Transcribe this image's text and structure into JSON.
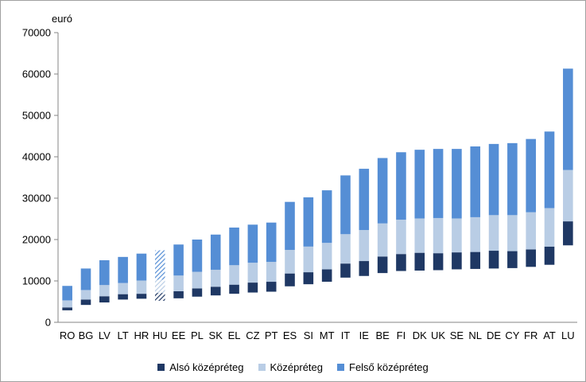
{
  "chart_data": {
    "type": "bar",
    "stacked": true,
    "unit_label": "euró",
    "ylim": [
      0,
      70000
    ],
    "yticks": [
      0,
      10000,
      20000,
      30000,
      40000,
      50000,
      60000,
      70000
    ],
    "categories": [
      "RO",
      "BG",
      "LV",
      "LT",
      "HR",
      "HU",
      "EE",
      "PL",
      "SK",
      "EL",
      "CZ",
      "PT",
      "ES",
      "SI",
      "MT",
      "IT",
      "IE",
      "BE",
      "FI",
      "DK",
      "UK",
      "SE",
      "NL",
      "DE",
      "CY",
      "FR",
      "AT",
      "LU"
    ],
    "highlight": "HU",
    "series": [
      {
        "name": "Alsó középréteg",
        "color": "#1f3864",
        "lower": [
          2900,
          4200,
          4800,
          5500,
          5700,
          5200,
          5800,
          6200,
          6500,
          6900,
          7200,
          7400,
          8700,
          9200,
          9800,
          10800,
          11200,
          11900,
          12400,
          12500,
          12600,
          12800,
          12900,
          13000,
          13100,
          13400,
          13900,
          18600
        ],
        "upper": [
          3600,
          5500,
          6300,
          6800,
          6900,
          7100,
          7500,
          8200,
          8600,
          9100,
          9600,
          9800,
          11800,
          12100,
          12800,
          14200,
          14800,
          15900,
          16500,
          16800,
          16700,
          16900,
          17000,
          17300,
          17200,
          17600,
          18300,
          24400
        ]
      },
      {
        "name": "Középréteg",
        "color": "#b9cde5",
        "lower": [
          3600,
          5500,
          6300,
          6800,
          6900,
          7100,
          7500,
          8200,
          8600,
          9100,
          9600,
          9800,
          11800,
          12100,
          12800,
          14200,
          14800,
          15900,
          16500,
          16800,
          16700,
          16900,
          17000,
          17300,
          17200,
          17600,
          18300,
          24400
        ],
        "upper": [
          5300,
          7800,
          9000,
          9500,
          10100,
          10300,
          11300,
          12200,
          12700,
          13800,
          14400,
          14600,
          17500,
          18300,
          19200,
          21300,
          22300,
          23900,
          24800,
          25100,
          25200,
          25100,
          25400,
          25900,
          25900,
          26600,
          27600,
          36800
        ]
      },
      {
        "name": "Felső középréteg",
        "color": "#558ed5",
        "lower": [
          5300,
          7800,
          9000,
          9500,
          10100,
          10300,
          11300,
          12200,
          12700,
          13800,
          14400,
          14600,
          17500,
          18300,
          19200,
          21300,
          22300,
          23900,
          24800,
          25100,
          25200,
          25100,
          25400,
          25900,
          25900,
          26600,
          27600,
          36800
        ],
        "upper": [
          8800,
          13000,
          15000,
          15800,
          16600,
          17400,
          18800,
          20000,
          21200,
          22900,
          23600,
          24100,
          29100,
          30200,
          31900,
          35500,
          37100,
          39700,
          41100,
          41700,
          41900,
          41900,
          42500,
          43100,
          43300,
          44300,
          46100,
          61300
        ]
      }
    ]
  }
}
